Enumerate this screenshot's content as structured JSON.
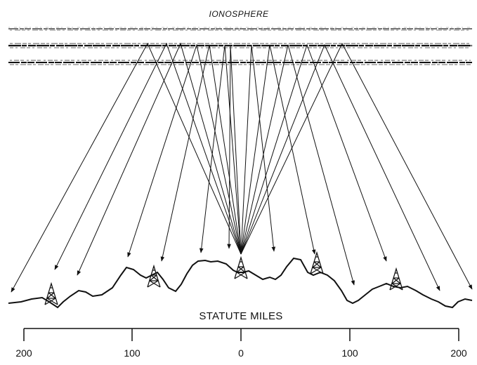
{
  "diagram": {
    "title": "IONOSPHERE",
    "scale": {
      "title": "STATUTE MILES",
      "ticks": [
        "200",
        "100",
        "0",
        "100",
        "200"
      ]
    },
    "towers": [
      {
        "name": "transmitter-tower-center"
      },
      {
        "name": "receiver-tower-1"
      },
      {
        "name": "receiver-tower-2"
      },
      {
        "name": "receiver-tower-3"
      },
      {
        "name": "receiver-tower-4"
      }
    ],
    "colors": {
      "ink": "#111111",
      "background": "#ffffff"
    }
  }
}
